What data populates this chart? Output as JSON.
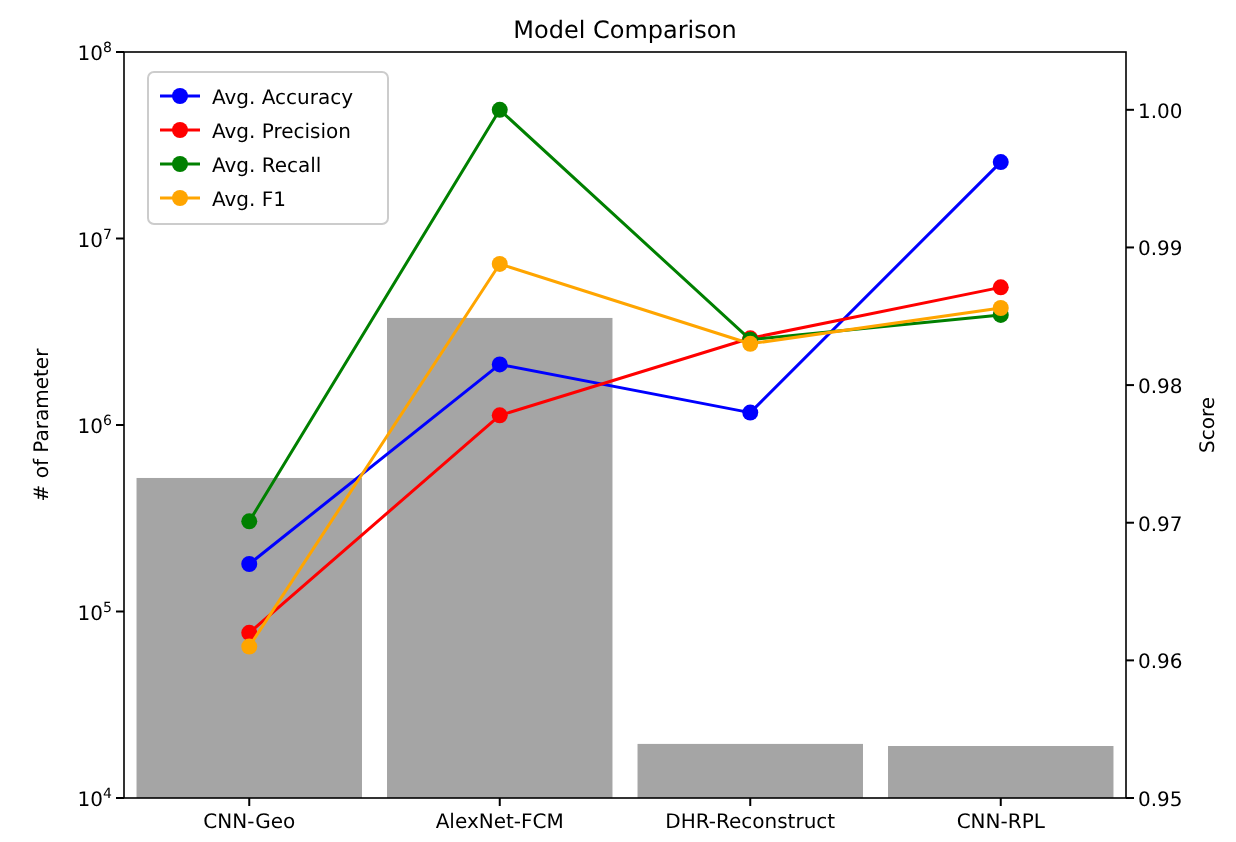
{
  "chart_data": {
    "type": "bar",
    "title": "Model Comparison",
    "ylabel": "# of Parameter",
    "y2label": "Score",
    "categories": [
      "CNN-Geo",
      "AlexNet-FCM",
      "DHR-Reconstruct",
      "CNN-RPL"
    ],
    "log": true,
    "ylim": [
      10000,
      100000000
    ],
    "yticks": [
      {
        "value": 10000,
        "label": "10$^{4}$"
      },
      {
        "value": 100000,
        "label": "10$^{5}$"
      },
      {
        "value": 1000000,
        "label": "10$^{6}$"
      },
      {
        "value": 10000000,
        "label": "10$^{7}$"
      },
      {
        "value": 100000000,
        "label": "10$^{8}$"
      }
    ],
    "y2lim": [
      0.95,
      1.0042
    ],
    "y2ticks": [
      {
        "value": 0.95,
        "label": "0.95"
      },
      {
        "value": 0.96,
        "label": "0.96"
      },
      {
        "value": 0.97,
        "label": "0.97"
      },
      {
        "value": 0.98,
        "label": "0.98"
      },
      {
        "value": 0.99,
        "label": "0.99"
      },
      {
        "value": 1.0,
        "label": "1.00"
      }
    ],
    "legend": "top left",
    "marker": "circle",
    "grid": false,
    "series": [
      {
        "color": "#a5a5a5",
        "values": [
          520000,
          3750000,
          19500,
          19000
        ]
      },
      {
        "type": "line",
        "axis": "y2",
        "name": "Avg. Accuracy",
        "color": "#0000ff",
        "values": [
          0.967,
          0.9815,
          0.978,
          0.9962
        ]
      },
      {
        "type": "line",
        "axis": "y2",
        "name": "Avg. Precision",
        "color": "#ff0000",
        "values": [
          0.962,
          0.9778,
          0.9834,
          0.9871
        ]
      },
      {
        "type": "line",
        "axis": "y2",
        "name": "Avg. Recall",
        "color": "#008000",
        "values": [
          0.9701,
          1.0,
          0.9833,
          0.9851
        ]
      },
      {
        "type": "line",
        "axis": "y2",
        "name": "Avg. F1",
        "color": "#ffa500",
        "values": [
          0.961,
          0.9888,
          0.983,
          0.9856
        ]
      }
    ]
  }
}
